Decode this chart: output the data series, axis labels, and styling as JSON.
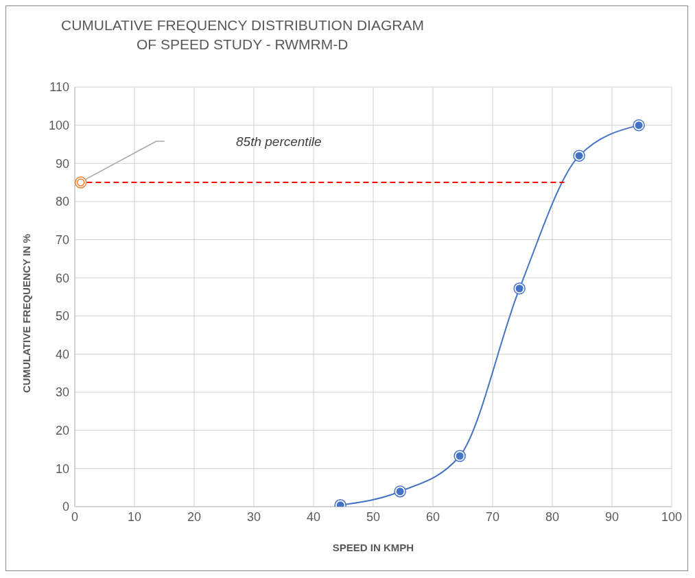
{
  "chart_data": {
    "type": "line",
    "title": "CUMULATIVE FREQUENCY DISTRIBUTION DIAGRAM\nOF SPEED STUDY - RWMRM-D",
    "xlabel": "SPEED IN KMPH",
    "ylabel": "CUMULATIVE FREQUENCY IN %",
    "x": [
      44.5,
      54.5,
      64.5,
      74.5,
      84.5,
      94.5
    ],
    "series": [
      {
        "color": "#4472c4",
        "values": [
          0.4,
          4,
          13.3,
          57.2,
          92,
          100
        ]
      },
      {
        "type": "scatter",
        "color": "#ed7d31",
        "x": [
          1
        ],
        "values": [
          85
        ]
      },
      {
        "type": "line",
        "color": "#ff0000",
        "x": [
          2,
          82
        ],
        "values": [
          85,
          85
        ],
        "line_style": "dashed",
        "marker": "none"
      }
    ],
    "annotations": [
      "85th percentile"
    ],
    "xlim": [
      0,
      100
    ],
    "xticks": [
      0,
      10,
      20,
      30,
      40,
      50,
      60,
      70,
      80,
      90,
      100
    ],
    "ylim": [
      0,
      110
    ],
    "yticks": [
      0,
      10,
      20,
      30,
      40,
      50,
      60,
      70,
      80,
      90,
      100,
      110
    ],
    "grid": true,
    "marker": "circle",
    "line_style": "solid"
  }
}
